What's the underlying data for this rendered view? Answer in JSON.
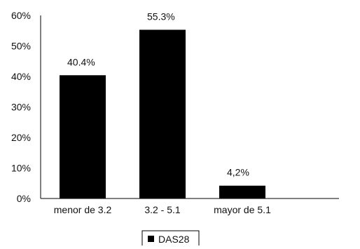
{
  "chart_data": {
    "type": "bar",
    "categories": [
      "menor de 3.2",
      "3.2 - 5.1",
      "mayor de 5.1"
    ],
    "series": [
      {
        "name": "DAS28",
        "values": [
          40.4,
          55.3,
          4.2
        ],
        "color": "#000000"
      }
    ],
    "data_labels": [
      "40.4%",
      "55.3%",
      "4,2%"
    ],
    "y_ticks": [
      "0%",
      "10%",
      "20%",
      "30%",
      "40%",
      "50%",
      "60%"
    ],
    "ylim": [
      0,
      60
    ],
    "grid": false,
    "legend": {
      "position": "bottom",
      "label": "DAS28"
    }
  }
}
